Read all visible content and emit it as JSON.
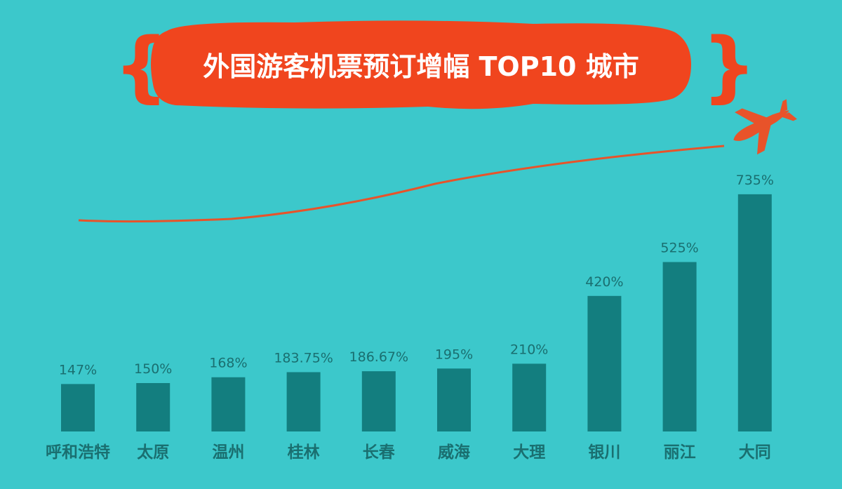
{
  "chart_data": {
    "type": "bar",
    "title": "外国游客机票预订增幅 TOP10 城市",
    "categories": [
      "呼和浩特",
      "太原",
      "温州",
      "桂林",
      "长春",
      "威海",
      "大理",
      "银川",
      "丽江",
      "大同"
    ],
    "values": [
      147,
      150,
      168,
      183.75,
      186.67,
      195,
      210,
      420,
      525,
      735
    ],
    "value_labels": [
      "147%",
      "150%",
      "168%",
      "183.75%",
      "186.67%",
      "195%",
      "210%",
      "420%",
      "525%",
      "735%"
    ],
    "unit": "%",
    "xlabel": "",
    "ylabel": "",
    "ylim": [
      0,
      750
    ],
    "grid": false,
    "legend": "none"
  },
  "colors": {
    "background": "#3cc8cb",
    "bar": "#137e7f",
    "value_label": "#1a6f70",
    "category_label": "#1a6f70",
    "title_banner": "#f0451e",
    "title_text": "#ffffff",
    "accent": "#e8532a"
  },
  "icons": {
    "plane": "airplane-icon"
  }
}
